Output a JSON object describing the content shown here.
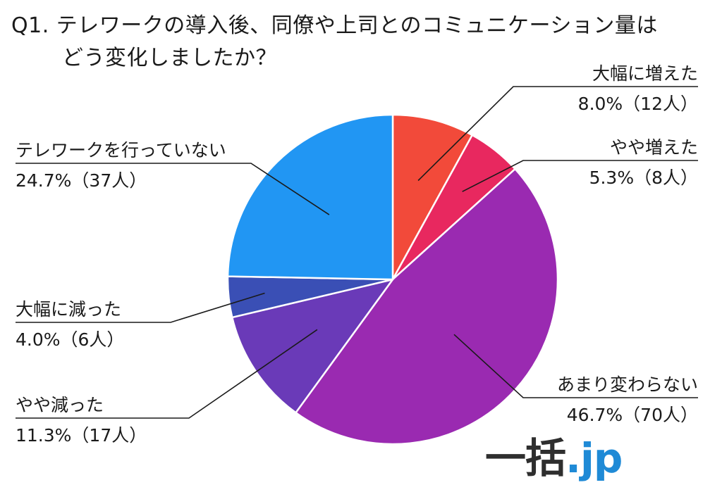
{
  "title": {
    "line1": "Q1. テレワークの導入後、同僚や上司とのコミュニケーション量は",
    "line2": "どう変化しましたか？"
  },
  "chart_data": {
    "type": "pie",
    "start_angle_deg": 0,
    "direction": "clockwise",
    "slices": [
      {
        "label": "大幅に増えた",
        "value": 8.0,
        "value_text": "8.0%（12人）",
        "count": 12,
        "color": "#f24a3a"
      },
      {
        "label": "やや増えた",
        "value": 5.3,
        "value_text": "5.3%（8人）",
        "count": 8,
        "color": "#e8285f"
      },
      {
        "label": "あまり変わらない",
        "value": 46.7,
        "value_text": "46.7%（70人）",
        "count": 70,
        "color": "#9a2ab1"
      },
      {
        "label": "やや減った",
        "value": 11.3,
        "value_text": "11.3%（17人）",
        "count": 17,
        "color": "#6a3ab8"
      },
      {
        "label": "大幅に減った",
        "value": 4.0,
        "value_text": "4.0%（6人）",
        "count": 6,
        "color": "#3a4fb5"
      },
      {
        "label": "テレワークを行っていない",
        "value": 24.7,
        "value_text": "24.7%（37人）",
        "count": 37,
        "color": "#2196f3"
      }
    ]
  },
  "watermark": {
    "main": "一括",
    "tld": ".jp"
  }
}
